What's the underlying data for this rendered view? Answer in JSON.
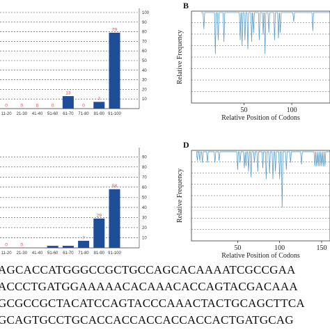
{
  "chart_data": [
    {
      "id": "A",
      "type": "bar",
      "categories": [
        "11-20",
        "21-30",
        "41-40",
        "51-60",
        "61-70",
        "71-80",
        "81-90",
        "91-100"
      ],
      "category_labels": [
        "11-20",
        "21-30",
        "41-40",
        "51-60",
        "61-70",
        "71-80",
        "81-90",
        "91-100"
      ],
      "values": [
        0,
        0,
        0,
        0,
        13,
        0,
        7,
        79
      ],
      "value_labels": [
        "0",
        "0",
        "0",
        "0",
        "13",
        "0",
        "7",
        "79"
      ],
      "yticks": [
        10,
        20,
        30,
        40,
        50,
        60,
        70,
        80,
        90,
        100
      ],
      "ylim": [
        0,
        100
      ],
      "grid": true,
      "bar_color": "#1f4e99",
      "label_color": "#d94a4a"
    },
    {
      "id": "B",
      "type": "line",
      "panel_letter": "B",
      "xlabel": "Relative Position of Codons",
      "ylabel": "Relative Frequency",
      "xticks": [
        50,
        100
      ],
      "xlim": [
        -5,
        140
      ],
      "ylim": [
        0,
        1
      ],
      "line_color": "#5b9bc4",
      "grid": true,
      "dips": [
        {
          "x": 8,
          "depth": 0.18
        },
        {
          "x": 20,
          "depth": 0.45
        },
        {
          "x": 23,
          "depth": 0.3
        },
        {
          "x": 29,
          "depth": 0.32
        },
        {
          "x": 46,
          "depth": 0.3
        },
        {
          "x": 48,
          "depth": 0.36
        },
        {
          "x": 51,
          "depth": 0.3
        },
        {
          "x": 54,
          "depth": 0.4
        },
        {
          "x": 58,
          "depth": 0.32
        },
        {
          "x": 60,
          "depth": 0.22
        },
        {
          "x": 66,
          "depth": 0.3
        },
        {
          "x": 70,
          "depth": 0.24
        },
        {
          "x": 72,
          "depth": 0.45
        },
        {
          "x": 76,
          "depth": 0.22
        },
        {
          "x": 82,
          "depth": 0.3
        },
        {
          "x": 86,
          "depth": 0.28
        },
        {
          "x": 88,
          "depth": 0.22
        },
        {
          "x": 102,
          "depth": 0.1
        },
        {
          "x": 122,
          "depth": 0.2
        }
      ]
    },
    {
      "id": "C",
      "type": "bar",
      "categories": [
        "11-20",
        "21-30",
        "41-40",
        "51-60",
        "61-70",
        "71-80",
        "81-90",
        "91-100"
      ],
      "category_labels": [
        "11-20",
        "21-30",
        "41-40",
        "51-60",
        "61-70",
        "71-80",
        "81-90",
        "91-100"
      ],
      "values": [
        0,
        0,
        0,
        2,
        2,
        7,
        29,
        58
      ],
      "value_labels": [
        "0",
        "0",
        "",
        "",
        "",
        "7",
        "29",
        "58"
      ],
      "yticks": [
        10,
        20,
        30,
        40,
        50,
        60,
        70,
        80,
        90
      ],
      "ylim": [
        0,
        95
      ],
      "grid": true,
      "bar_color": "#1f4e99",
      "label_color": "#d94a4a"
    },
    {
      "id": "D",
      "type": "line",
      "panel_letter": "D",
      "xlabel": "Relative Position of Codons",
      "ylabel": "Relative Frequency",
      "xticks": [
        50,
        100,
        150
      ],
      "xlim": [
        -5,
        160
      ],
      "ylim": [
        0,
        1
      ],
      "line_color": "#5b9bc4",
      "grid": true,
      "dips": [
        {
          "x": 2,
          "depth": 0.1
        },
        {
          "x": 5,
          "depth": 0.1
        },
        {
          "x": 8,
          "depth": 0.12
        },
        {
          "x": 14,
          "depth": 0.12
        },
        {
          "x": 23,
          "depth": 0.12
        },
        {
          "x": 28,
          "depth": 0.1
        },
        {
          "x": 50,
          "depth": 0.2
        },
        {
          "x": 53,
          "depth": 0.12
        },
        {
          "x": 58,
          "depth": 0.18
        },
        {
          "x": 60,
          "depth": 0.16
        },
        {
          "x": 63,
          "depth": 0.22
        },
        {
          "x": 66,
          "depth": 0.28
        },
        {
          "x": 70,
          "depth": 0.12
        },
        {
          "x": 74,
          "depth": 0.22
        },
        {
          "x": 80,
          "depth": 0.18
        },
        {
          "x": 84,
          "depth": 0.3
        },
        {
          "x": 88,
          "depth": 0.24
        },
        {
          "x": 92,
          "depth": 0.3
        },
        {
          "x": 95,
          "depth": 0.22
        },
        {
          "x": 100,
          "depth": 0.3
        },
        {
          "x": 103,
          "depth": 0.62
        },
        {
          "x": 108,
          "depth": 0.2
        },
        {
          "x": 113,
          "depth": 0.12
        },
        {
          "x": 126,
          "depth": 0.14
        },
        {
          "x": 142,
          "depth": 0.16
        },
        {
          "x": 144,
          "depth": 0.16
        },
        {
          "x": 146,
          "depth": 0.16
        },
        {
          "x": 148,
          "depth": 0.16
        },
        {
          "x": 150,
          "depth": 0.16
        },
        {
          "x": 152,
          "depth": 0.16
        },
        {
          "x": 154,
          "depth": 0.16
        }
      ]
    }
  ],
  "sequence_lines": [
    "AGCACCATGGGCCGCTGCCAGCACAAAATCGCCGAA",
    "ACCCTGATGGAAAAACACAAACACCAGTACGACAAA",
    "GCGCCGCTACATCCAGTACCCAAACTACTGCAGCTTCA",
    "GCAGTGCCTGCACCACCACCACCACCACTGATGCAG"
  ]
}
